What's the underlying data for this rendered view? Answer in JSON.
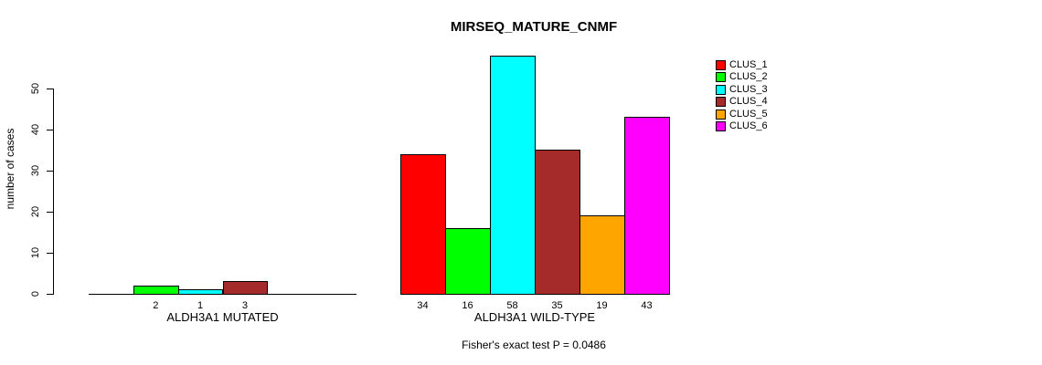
{
  "chart_data": {
    "type": "bar",
    "title": "MIRSEQ_MATURE_CNMF",
    "ylabel": "number of cases",
    "xlabel": "",
    "ylim": [
      0,
      58
    ],
    "yticks": [
      0,
      10,
      20,
      30,
      40,
      50
    ],
    "grid": false,
    "legend_position": "top-right",
    "categories": [
      "ALDH3A1 MUTATED",
      "ALDH3A1 WILD-TYPE"
    ],
    "series": [
      {
        "name": "CLUS_1",
        "color": "#FF0000",
        "values": [
          0,
          34
        ]
      },
      {
        "name": "CLUS_2",
        "color": "#00FF00",
        "values": [
          2,
          16
        ]
      },
      {
        "name": "CLUS_3",
        "color": "#00FFFF",
        "values": [
          1,
          58
        ]
      },
      {
        "name": "CLUS_4",
        "color": "#A52A2A",
        "values": [
          3,
          35
        ]
      },
      {
        "name": "CLUS_5",
        "color": "#FFA500",
        "values": [
          0,
          19
        ]
      },
      {
        "name": "CLUS_6",
        "color": "#FF00FF",
        "values": [
          0,
          43
        ]
      }
    ],
    "bar_value_labels": "values shown under each nonzero bar",
    "annotation": "Fisher's exact test P = 0.0486"
  }
}
